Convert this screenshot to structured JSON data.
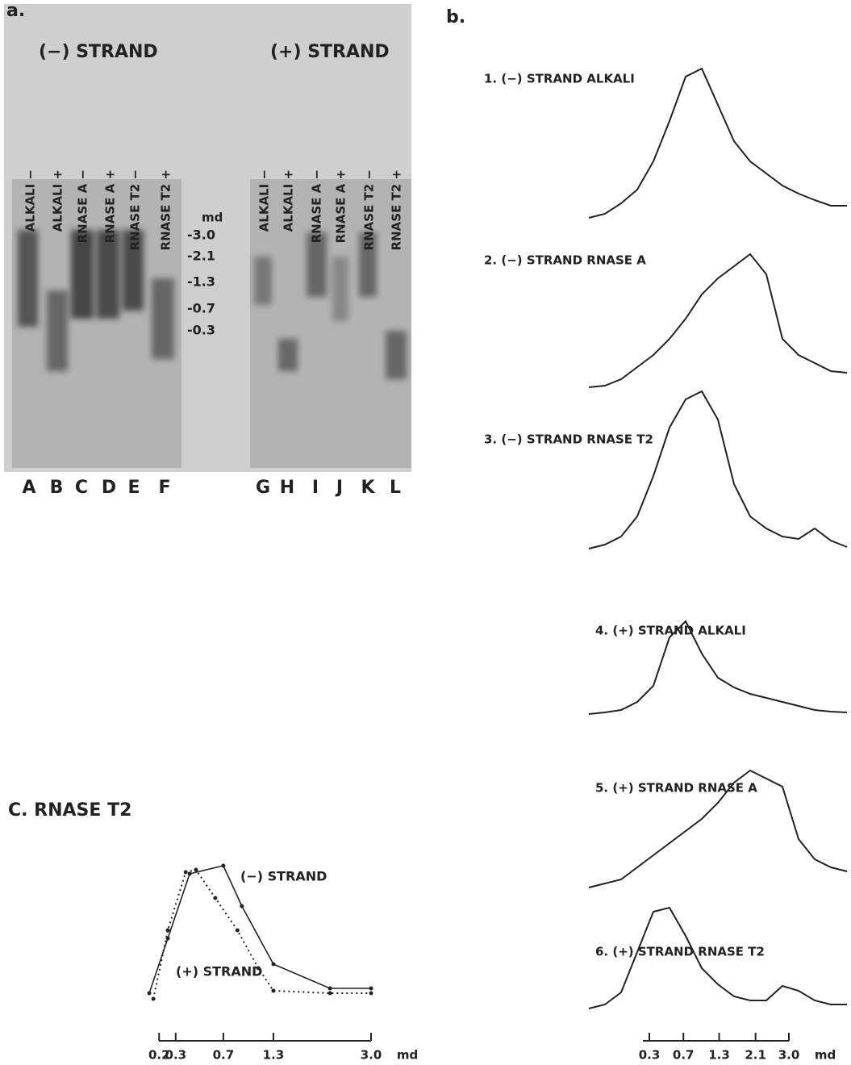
{
  "panel_a": {
    "label": "a.",
    "minus_title": "(−) STRAND",
    "plus_title": "(+) STRAND",
    "lanes": [
      "ALKALI −",
      "ALKALI +",
      "RNASE A −",
      "RNASE A +",
      "RNASE T2 −",
      "RNASE T2 +",
      "ALKALI −",
      "ALKALI +",
      "RNASE A −",
      "RNASE A +",
      "RNASE T2 −",
      "RNASE T2 +"
    ],
    "lane_letters": [
      "A",
      "B",
      "C",
      "D",
      "E",
      "F",
      "G",
      "H",
      "I",
      "J",
      "K",
      "L"
    ],
    "marker_unit": "md",
    "markers": [
      "-3.0",
      "-2.1",
      "-1.3",
      "-0.7",
      "-0.3"
    ]
  },
  "panel_b": {
    "label": "b."
  },
  "chart_data": [
    {
      "type": "trace",
      "title": "1. (−) STRAND ALKALI",
      "color": "#222",
      "ylim": [
        0,
        200
      ],
      "values": [
        10,
        15,
        28,
        45,
        80,
        130,
        185,
        195,
        150,
        105,
        80,
        65,
        50,
        40,
        32,
        25,
        25
      ]
    },
    {
      "type": "trace",
      "title": "2. (−) STRAND RNASE A",
      "color": "#222",
      "ylim": [
        0,
        200
      ],
      "values": [
        10,
        12,
        20,
        35,
        50,
        70,
        95,
        125,
        145,
        160,
        175,
        150,
        70,
        50,
        40,
        30,
        28
      ]
    },
    {
      "type": "trace",
      "title": "3. (−) STRAND RNASE T2",
      "color": "#222",
      "ylim": [
        0,
        200
      ],
      "values": [
        10,
        15,
        25,
        50,
        100,
        160,
        195,
        205,
        170,
        90,
        50,
        35,
        25,
        22,
        35,
        20,
        12
      ]
    },
    {
      "type": "trace",
      "title": "4. (+) STRAND ALKALI",
      "color": "#222",
      "ylim": [
        0,
        200
      ],
      "values": [
        10,
        12,
        15,
        25,
        45,
        105,
        125,
        85,
        55,
        43,
        35,
        30,
        25,
        20,
        15,
        13,
        12
      ]
    },
    {
      "type": "trace",
      "title": "5. (+) STRAND RNASE A",
      "color": "#222",
      "ylim": [
        0,
        200
      ],
      "values": [
        10,
        15,
        20,
        35,
        50,
        65,
        80,
        95,
        115,
        140,
        155,
        145,
        135,
        70,
        45,
        35,
        30
      ]
    },
    {
      "type": "trace",
      "title": "6. (+) STRAND RNASE T2",
      "color": "#222",
      "ylim": [
        0,
        200
      ],
      "values": [
        10,
        15,
        30,
        80,
        130,
        135,
        100,
        60,
        40,
        25,
        20,
        20,
        38,
        32,
        20,
        15,
        15
      ],
      "xscale": "sqrt",
      "xlim": [
        0.3,
        3
      ],
      "xticks": [
        0.3,
        0.7,
        1.3,
        2.1,
        {
          "value": 3,
          "label": "3.0"
        }
      ],
      "xlabel": "md"
    },
    {
      "type": "line",
      "title": "C. RNASE T2",
      "xscale": "sqrt",
      "xlim": [
        0.15,
        3
      ],
      "ylim": [
        0,
        180
      ],
      "xticks": [
        0.2,
        0.3,
        0.7,
        1.3,
        {
          "value": 3,
          "label": "3.0"
        }
      ],
      "xlabel": "md",
      "series": [
        {
          "name": "(−) STRAND",
          "color": "#222",
          "dash": false,
          "x": [
            0.15,
            0.25,
            0.4,
            0.7,
            0.9,
            1.3,
            2.2,
            3
          ],
          "values": [
            7,
            75,
            155,
            165,
            115,
            43,
            13,
            13
          ]
        },
        {
          "name": "(+) STRAND",
          "color": "#222",
          "dash": true,
          "x": [
            0.17,
            0.25,
            0.37,
            0.45,
            0.62,
            0.85,
            1.1,
            1.3,
            2.2,
            3
          ],
          "values": [
            0,
            85,
            157,
            160,
            125,
            85,
            38,
            10,
            7,
            7
          ]
        }
      ]
    }
  ]
}
